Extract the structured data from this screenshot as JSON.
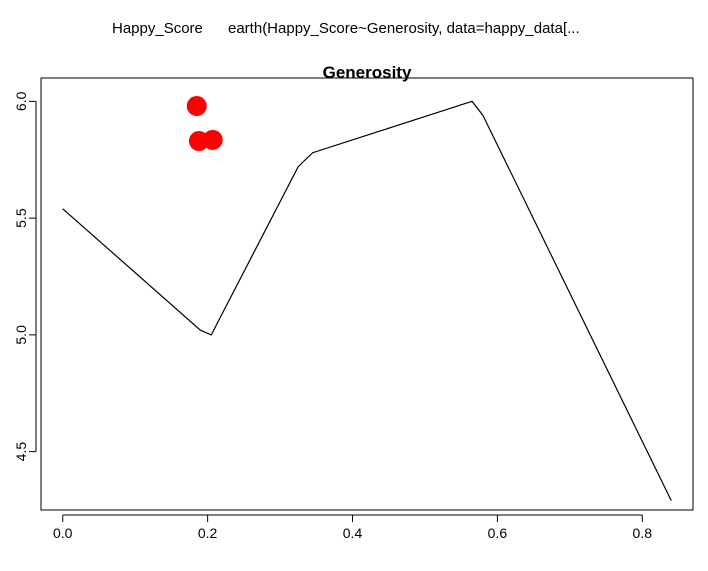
{
  "header": {
    "response_label": "Happy_Score",
    "model_call": "earth(Happy_Score~Generosity, data=happy_data[..."
  },
  "chart_data": {
    "type": "line",
    "title": "Generosity",
    "xlabel": "",
    "ylabel": "",
    "xlim": [
      -0.03,
      0.87
    ],
    "ylim": [
      4.25,
      6.1
    ],
    "x_ticks": [
      0.0,
      0.2,
      0.4,
      0.6,
      0.8
    ],
    "x_tick_labels": [
      "0.0",
      "0.2",
      "0.4",
      "0.6",
      "0.8"
    ],
    "y_ticks": [
      4.5,
      5.0,
      5.5,
      6.0
    ],
    "y_tick_labels": [
      "4.5",
      "5.0",
      "5.5",
      "6.0"
    ],
    "series": [
      {
        "kind": "line",
        "color": "#000000",
        "x": [
          0.0,
          0.19,
          0.205,
          0.325,
          0.345,
          0.565,
          0.58,
          0.84
        ],
        "y": [
          5.54,
          5.02,
          5.0,
          5.72,
          5.78,
          6.0,
          5.94,
          4.29
        ]
      },
      {
        "kind": "points",
        "color": "#ff0000",
        "x": [
          0.185,
          0.188,
          0.207
        ],
        "y": [
          5.98,
          5.83,
          5.835
        ]
      }
    ],
    "grid": false,
    "legend": "none"
  }
}
